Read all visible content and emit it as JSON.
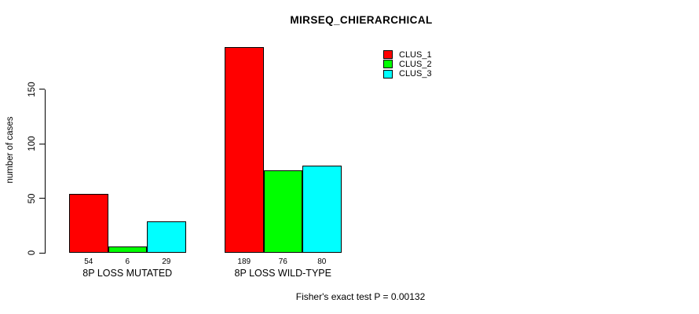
{
  "chart_data": {
    "type": "bar",
    "title": "MIRSEQ_CHIERARCHICAL",
    "ylabel": "number of cases",
    "xlabel": "",
    "categories": [
      "8P LOSS MUTATED",
      "8P LOSS WILD-TYPE"
    ],
    "series": [
      {
        "name": "CLUS_1",
        "color": "#FF0000",
        "values": [
          54,
          189
        ]
      },
      {
        "name": "CLUS_2",
        "color": "#00FF00",
        "values": [
          6,
          76
        ]
      },
      {
        "name": "CLUS_3",
        "color": "#00FFFF",
        "values": [
          29,
          80
        ]
      }
    ],
    "bar_value_labels": [
      [
        54,
        6,
        29
      ],
      [
        189,
        76,
        80
      ]
    ],
    "ylim": [
      0,
      190
    ],
    "yticks": [
      0,
      50,
      100,
      150
    ],
    "grid": false,
    "legend_position": "top-right",
    "legend_entries": [
      "CLUS_1",
      "CLUS_2",
      "CLUS_3"
    ],
    "annotation": "Fisher's exact test P = 0.00132"
  },
  "colors": {
    "background": "#FFFFFF",
    "axis": "#000000",
    "bar_border": "#000000",
    "clus_1": "#FF0000",
    "clus_2": "#00FF00",
    "clus_3": "#00FFFF"
  }
}
